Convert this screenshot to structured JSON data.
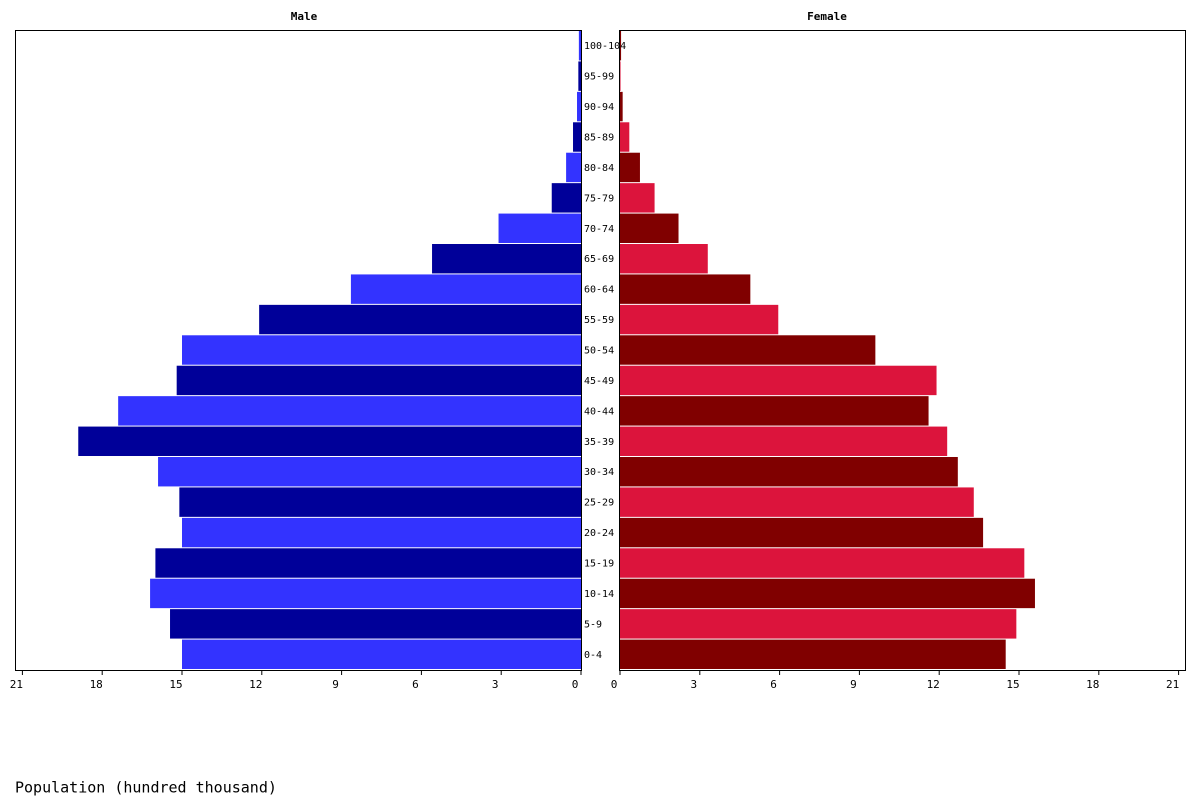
{
  "chart_data": {
    "type": "pyramid",
    "categories": [
      "100-104",
      "95-99",
      "90-94",
      "85-89",
      "80-84",
      "75-79",
      "70-74",
      "65-69",
      "60-64",
      "55-59",
      "50-54",
      "45-49",
      "40-44",
      "35-39",
      "30-34",
      "25-29",
      "20-24",
      "15-19",
      "10-14",
      "5-9",
      "0-4"
    ],
    "series": [
      {
        "name": "Male",
        "colors": [
          "#3333ff",
          "#000099"
        ],
        "values": [
          0.08,
          0.1,
          0.15,
          0.3,
          0.56,
          1.1,
          3.1,
          5.6,
          8.65,
          12.1,
          15.0,
          15.2,
          17.4,
          18.9,
          15.9,
          15.1,
          15.0,
          16.0,
          16.2,
          15.45,
          15.0
        ]
      },
      {
        "name": "Female",
        "colors": [
          "#800000",
          "#dc143c"
        ],
        "values": [
          0.04,
          0.02,
          0.1,
          0.35,
          0.75,
          1.3,
          2.2,
          3.3,
          4.9,
          5.95,
          9.6,
          11.9,
          11.6,
          12.3,
          12.7,
          13.3,
          13.65,
          15.2,
          15.6,
          14.9,
          14.5
        ]
      }
    ],
    "xlabel": "Population (hundred thousand)",
    "xlim": [
      0,
      21
    ],
    "xticks": [
      0,
      3,
      6,
      9,
      12,
      15,
      18,
      21
    ]
  }
}
